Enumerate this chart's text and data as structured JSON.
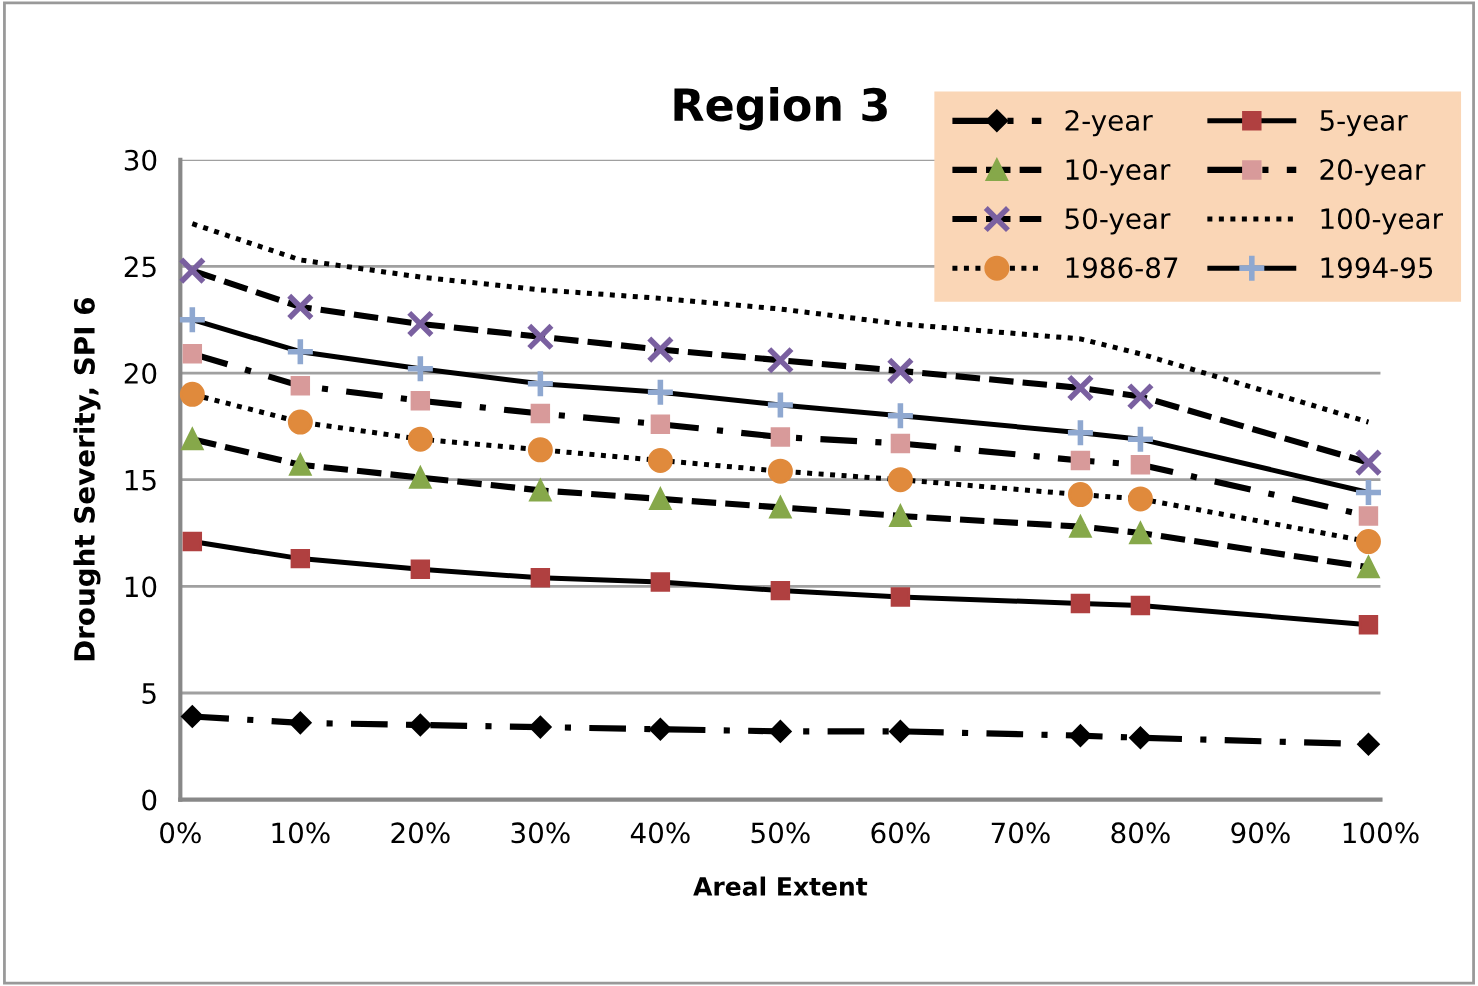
{
  "chart_data": {
    "type": "line",
    "title": "Region 3",
    "xlabel": "Areal Extent",
    "ylabel": "Drought Severity, SPI 6",
    "x": [
      1,
      10,
      20,
      30,
      40,
      50,
      60,
      75,
      80,
      99
    ],
    "series": [
      {
        "name": "2-year",
        "color": "#000000",
        "marker": "diamond",
        "line_style": "dashdot",
        "values": [
          3.9,
          3.6,
          3.5,
          3.4,
          3.3,
          3.2,
          3.2,
          3.0,
          2.9,
          2.6
        ]
      },
      {
        "name": "5-year",
        "color": "#b04040",
        "marker": "square",
        "line_style": "solid",
        "values": [
          12.1,
          11.3,
          10.8,
          10.4,
          10.2,
          9.8,
          9.5,
          9.2,
          9.1,
          8.2
        ]
      },
      {
        "name": "10-year",
        "color": "#86a84a",
        "marker": "triangle",
        "line_style": "dashed",
        "values": [
          16.9,
          15.7,
          15.1,
          14.5,
          14.1,
          13.7,
          13.3,
          12.8,
          12.5,
          10.9
        ]
      },
      {
        "name": "20-year",
        "color": "#d89a9a",
        "marker": "square",
        "line_style": "dashdot",
        "values": [
          20.9,
          19.4,
          18.7,
          18.1,
          17.6,
          17.0,
          16.7,
          15.9,
          15.7,
          13.3
        ]
      },
      {
        "name": "50-year",
        "color": "#7a60a0",
        "marker": "cross",
        "line_style": "dashed",
        "values": [
          24.8,
          23.1,
          22.3,
          21.7,
          21.1,
          20.6,
          20.1,
          19.3,
          18.9,
          15.8
        ]
      },
      {
        "name": "100-year",
        "color": "#000000",
        "marker": "none",
        "line_style": "dotted",
        "values": [
          27.0,
          25.3,
          24.5,
          23.9,
          23.5,
          23.0,
          22.3,
          21.6,
          20.9,
          17.7
        ]
      },
      {
        "name": "1986-87",
        "color": "#e08a3c",
        "marker": "circle",
        "line_style": "dotted",
        "values": [
          19.0,
          17.7,
          16.9,
          16.4,
          15.9,
          15.4,
          15.0,
          14.3,
          14.1,
          12.1
        ]
      },
      {
        "name": "1994-95",
        "color": "#8fa8d0",
        "marker": "plus",
        "line_style": "solid",
        "values": [
          22.5,
          21.0,
          20.2,
          19.5,
          19.1,
          18.5,
          18.0,
          17.2,
          16.9,
          14.4
        ]
      }
    ],
    "xlim": [
      0,
      100
    ],
    "xticks": [
      {
        "value": 0,
        "label": "0%"
      },
      {
        "value": 10,
        "label": "10%"
      },
      {
        "value": 20,
        "label": "20%"
      },
      {
        "value": 30,
        "label": "30%"
      },
      {
        "value": 40,
        "label": "40%"
      },
      {
        "value": 50,
        "label": "50%"
      },
      {
        "value": 60,
        "label": "60%"
      },
      {
        "value": 70,
        "label": "70%"
      },
      {
        "value": 80,
        "label": "80%"
      },
      {
        "value": 90,
        "label": "90%"
      },
      {
        "value": 100,
        "label": "100%"
      }
    ],
    "ylim": [
      0,
      30
    ],
    "yticks": [
      0,
      5,
      10,
      15,
      20,
      25,
      30
    ],
    "grid": "y",
    "legend": "top right"
  }
}
